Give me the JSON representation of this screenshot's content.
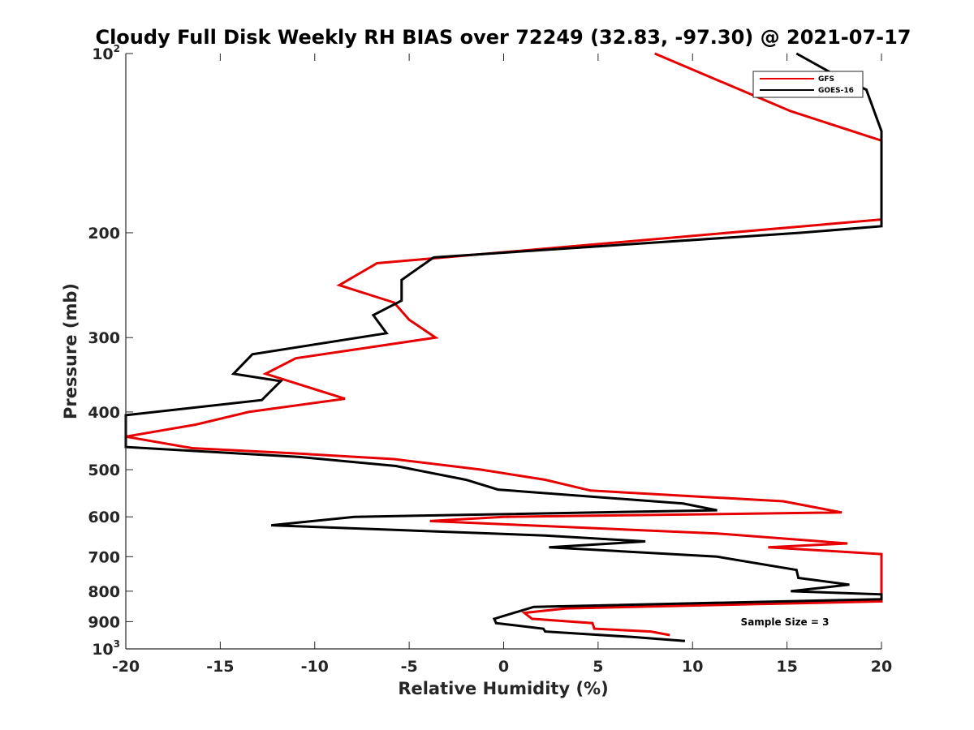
{
  "chart_data": {
    "type": "line",
    "title": "Cloudy Full Disk Weekly RH BIAS over 72249 (32.83, -97.30) @ 2021-07-17",
    "xlabel": "Relative Humidity (%)",
    "ylabel": "Pressure (mb)",
    "xlim": [
      -20,
      20
    ],
    "ylim": [
      100,
      1000
    ],
    "y_scale": "log",
    "y_reversed": true,
    "x_ticks": [
      -20,
      -15,
      -10,
      -5,
      0,
      5,
      10,
      15,
      20
    ],
    "x_tick_labels": [
      "-20",
      "-15",
      "-10",
      "-5",
      "0",
      "5",
      "10",
      "15",
      "20"
    ],
    "y_ticks": [
      100,
      200,
      300,
      400,
      500,
      600,
      700,
      800,
      900,
      1000
    ],
    "y_tick_labels": [
      {
        "base": "10",
        "sup": "2"
      },
      {
        "base": "200",
        "sup": ""
      },
      {
        "base": "300",
        "sup": ""
      },
      {
        "base": "400",
        "sup": ""
      },
      {
        "base": "500",
        "sup": ""
      },
      {
        "base": "600",
        "sup": ""
      },
      {
        "base": "700",
        "sup": ""
      },
      {
        "base": "800",
        "sup": ""
      },
      {
        "base": "900",
        "sup": ""
      },
      {
        "base": "10",
        "sup": "3"
      }
    ],
    "grid": false,
    "legend_position": "top-right",
    "series": [
      {
        "name": "GFS",
        "color": "#e60000",
        "points": [
          {
            "x": 8,
            "p": 100
          },
          {
            "x": 15.2,
            "p": 125
          },
          {
            "x": 20,
            "p": 140
          },
          {
            "x": 20,
            "p": 190
          },
          {
            "x": -6.7,
            "p": 225
          },
          {
            "x": -8.7,
            "p": 245
          },
          {
            "x": -5.8,
            "p": 262
          },
          {
            "x": -5,
            "p": 280
          },
          {
            "x": -3.6,
            "p": 300
          },
          {
            "x": -11,
            "p": 325
          },
          {
            "x": -12.6,
            "p": 345
          },
          {
            "x": -8.4,
            "p": 380
          },
          {
            "x": -13.5,
            "p": 400
          },
          {
            "x": -16.3,
            "p": 420
          },
          {
            "x": -20,
            "p": 440
          },
          {
            "x": -16.5,
            "p": 460
          },
          {
            "x": -10.8,
            "p": 470
          },
          {
            "x": -5.8,
            "p": 480
          },
          {
            "x": -1.2,
            "p": 500
          },
          {
            "x": 2.2,
            "p": 520
          },
          {
            "x": 4.6,
            "p": 542
          },
          {
            "x": 14.8,
            "p": 565
          },
          {
            "x": 17.9,
            "p": 590
          },
          {
            "x": 0,
            "p": 600
          },
          {
            "x": -3.9,
            "p": 610
          },
          {
            "x": 11.3,
            "p": 640
          },
          {
            "x": 18.2,
            "p": 665
          },
          {
            "x": 14,
            "p": 675
          },
          {
            "x": 20,
            "p": 693
          },
          {
            "x": 20,
            "p": 832
          },
          {
            "x": 3.3,
            "p": 855
          },
          {
            "x": 1.1,
            "p": 870
          },
          {
            "x": 1.5,
            "p": 890
          },
          {
            "x": 4.7,
            "p": 905
          },
          {
            "x": 4.8,
            "p": 925
          },
          {
            "x": 7.8,
            "p": 935
          },
          {
            "x": 8.8,
            "p": 948
          }
        ]
      },
      {
        "name": "GOES-16",
        "color": "#000000",
        "points": [
          {
            "x": 15.5,
            "p": 100
          },
          {
            "x": 17.4,
            "p": 108
          },
          {
            "x": 19.2,
            "p": 115
          },
          {
            "x": 20,
            "p": 135
          },
          {
            "x": 20,
            "p": 195
          },
          {
            "x": 15.7,
            "p": 200
          },
          {
            "x": -3.7,
            "p": 220
          },
          {
            "x": -5.4,
            "p": 240
          },
          {
            "x": -5.4,
            "p": 260
          },
          {
            "x": -6.9,
            "p": 275
          },
          {
            "x": -6.2,
            "p": 295
          },
          {
            "x": -13.3,
            "p": 320
          },
          {
            "x": -14.3,
            "p": 345
          },
          {
            "x": -11.8,
            "p": 355
          },
          {
            "x": -12.8,
            "p": 382
          },
          {
            "x": -20,
            "p": 405
          },
          {
            "x": -20,
            "p": 458
          },
          {
            "x": -10.8,
            "p": 476
          },
          {
            "x": -5.7,
            "p": 493
          },
          {
            "x": -2,
            "p": 520
          },
          {
            "x": -0.3,
            "p": 540
          },
          {
            "x": 9.5,
            "p": 570
          },
          {
            "x": 11.3,
            "p": 585
          },
          {
            "x": -7.9,
            "p": 600
          },
          {
            "x": -12.3,
            "p": 620
          },
          {
            "x": 2.2,
            "p": 645
          },
          {
            "x": 7.5,
            "p": 660
          },
          {
            "x": 2.4,
            "p": 675
          },
          {
            "x": 11.3,
            "p": 700
          },
          {
            "x": 15.5,
            "p": 737
          },
          {
            "x": 15.6,
            "p": 760
          },
          {
            "x": 18.3,
            "p": 780
          },
          {
            "x": 15.2,
            "p": 800
          },
          {
            "x": 20,
            "p": 810
          },
          {
            "x": 20,
            "p": 825
          },
          {
            "x": 1.6,
            "p": 850
          },
          {
            "x": -0.5,
            "p": 890
          },
          {
            "x": -0.4,
            "p": 905
          },
          {
            "x": 2.1,
            "p": 925
          },
          {
            "x": 2.2,
            "p": 935
          },
          {
            "x": 6.8,
            "p": 955
          },
          {
            "x": 9.6,
            "p": 970
          }
        ]
      }
    ],
    "annotation": "Sample Size = 3"
  }
}
